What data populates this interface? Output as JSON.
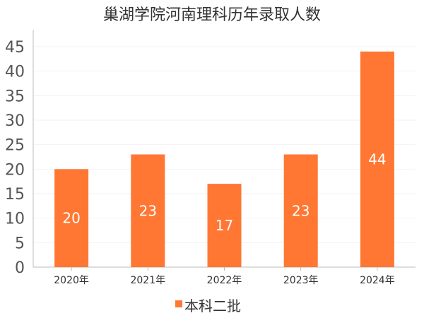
{
  "chart_data": {
    "type": "bar",
    "title": "巢湖学院河南理科历年录取人数",
    "categories": [
      "2020年",
      "2021年",
      "2022年",
      "2023年",
      "2024年"
    ],
    "series": [
      {
        "name": "本科二批",
        "values": [
          20,
          23,
          17,
          23,
          44
        ],
        "color": "#ff7733"
      }
    ],
    "ylim": [
      0,
      45
    ],
    "yticks": [
      0,
      5,
      10,
      15,
      20,
      25,
      30,
      35,
      40,
      45
    ],
    "xlabel": "",
    "ylabel": "",
    "grid": true,
    "legend": "bottom-center",
    "data_labels": true
  }
}
